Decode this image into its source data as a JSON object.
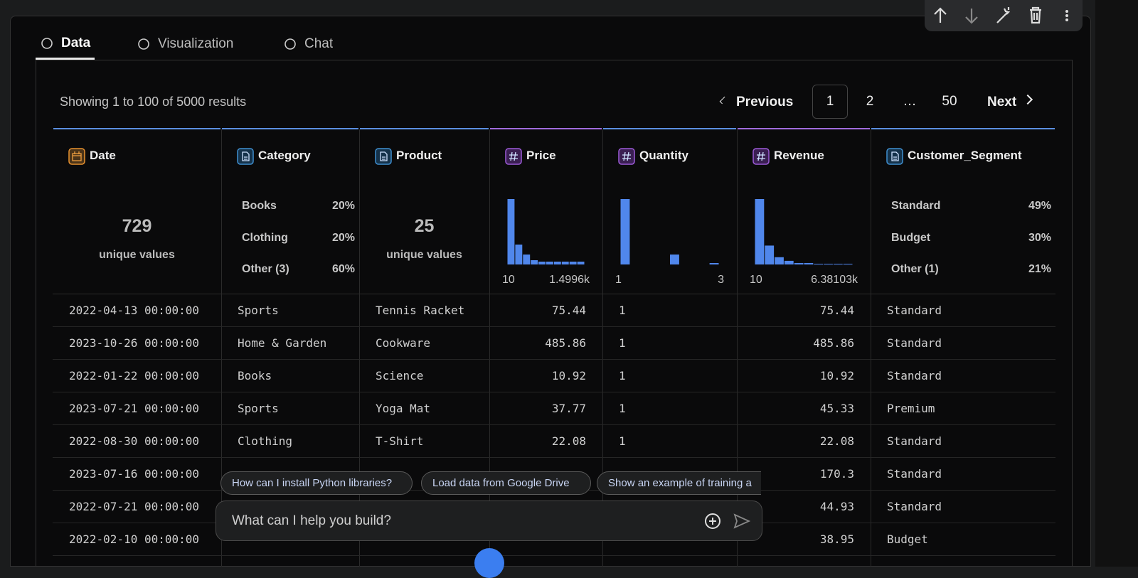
{
  "tabs": [
    "Data",
    "Visualization",
    "Chat"
  ],
  "status": "Showing 1 to 100 of 5000 results",
  "pagination": {
    "previous": "Previous",
    "pages": [
      "1",
      "2",
      "…",
      "50"
    ],
    "next": "Next"
  },
  "columns": [
    {
      "name": "Date",
      "kind": "date",
      "summary": {
        "count": "729",
        "caption": "unique values"
      }
    },
    {
      "name": "Category",
      "kind": "text",
      "summary": {
        "top": [
          [
            "Books",
            "20%"
          ],
          [
            "Clothing",
            "20%"
          ],
          [
            "Other (3)",
            "60%"
          ]
        ]
      }
    },
    {
      "name": "Product",
      "kind": "text",
      "summary": {
        "count": "25",
        "caption": "unique values"
      }
    },
    {
      "name": "Price",
      "kind": "number",
      "summary": {
        "histogram": [
          92,
          28,
          14,
          6,
          4,
          4,
          4,
          4,
          4,
          4
        ],
        "min": "10",
        "max": "1.4996k"
      }
    },
    {
      "name": "Quantity",
      "kind": "number",
      "summary": {
        "histogram": [
          92,
          0,
          0,
          0,
          0,
          14,
          0,
          0,
          0,
          2
        ],
        "min": "1",
        "max": "3"
      }
    },
    {
      "name": "Revenue",
      "kind": "number",
      "summary": {
        "histogram": [
          90,
          26,
          10,
          5,
          2,
          2,
          1,
          1,
          1,
          1
        ],
        "min": "10",
        "max": "6.38103k"
      }
    },
    {
      "name": "Customer_Segment",
      "kind": "text",
      "summary": {
        "top": [
          [
            "Standard",
            "49%"
          ],
          [
            "Budget",
            "30%"
          ],
          [
            "Other (1)",
            "21%"
          ]
        ]
      }
    }
  ],
  "rows": [
    [
      "2022-04-13 00:00:00",
      "Sports",
      "Tennis Racket",
      "75.44",
      "1",
      "75.44",
      "Standard"
    ],
    [
      "2023-10-26 00:00:00",
      "Home & Garden",
      "Cookware",
      "485.86",
      "1",
      "485.86",
      "Standard"
    ],
    [
      "2022-01-22 00:00:00",
      "Books",
      "Science",
      "10.92",
      "1",
      "10.92",
      "Standard"
    ],
    [
      "2023-07-21 00:00:00",
      "Sports",
      "Yoga Mat",
      "37.77",
      "1",
      "45.33",
      "Premium"
    ],
    [
      "2022-08-30 00:00:00",
      "Clothing",
      "T-Shirt",
      "22.08",
      "1",
      "22.08",
      "Standard"
    ],
    [
      "2023-07-16 00:00:00",
      null,
      null,
      null,
      null,
      "170.3",
      "Standard"
    ],
    [
      "2022-07-21 00:00:00",
      null,
      null,
      null,
      null,
      "44.93",
      "Standard"
    ],
    [
      "2022-02-10 00:00:00",
      null,
      null,
      null,
      null,
      "38.95",
      "Budget"
    ]
  ],
  "chips": [
    "How can I install Python libraries?",
    "Load data from Google Drive",
    "Show an example of training a"
  ],
  "chat_placeholder": "What can I help you build?"
}
